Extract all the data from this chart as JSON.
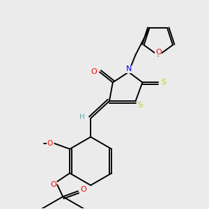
{
  "bg_color": "#ebebeb",
  "atom_colors": {
    "C": "#000000",
    "H": "#6fa8a8",
    "N": "#0000ff",
    "O": "#ff0000",
    "S": "#cccc00"
  },
  "bond_color": "#000000",
  "bond_width": 1.4,
  "figsize": [
    3.0,
    3.0
  ],
  "dpi": 100
}
